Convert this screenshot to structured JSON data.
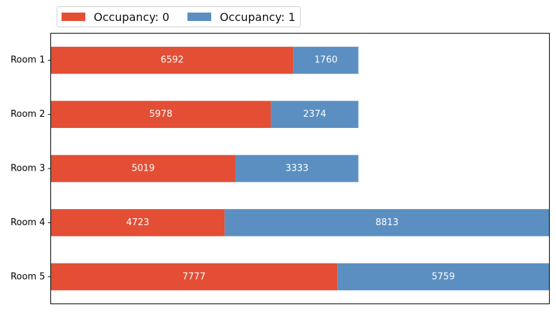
{
  "chart_data": {
    "type": "bar",
    "orientation": "horizontal",
    "stacked": true,
    "categories": [
      "Room 1",
      "Room 2",
      "Room 3",
      "Room 4",
      "Room 5"
    ],
    "series": [
      {
        "name": "Occupancy: 0",
        "color": "#e34e35",
        "values": [
          6592,
          5978,
          5019,
          4723,
          7777
        ]
      },
      {
        "name": "Occupancy: 1",
        "color": "#5b8fc2",
        "values": [
          1760,
          2374,
          3333,
          8813,
          5759
        ]
      }
    ],
    "xlim": [
      0,
      13536
    ],
    "x_ticks_shown": false,
    "grid": false,
    "legend_position": "top-left, above plot",
    "data_labels": true,
    "title": "",
    "xlabel": "",
    "ylabel": ""
  }
}
